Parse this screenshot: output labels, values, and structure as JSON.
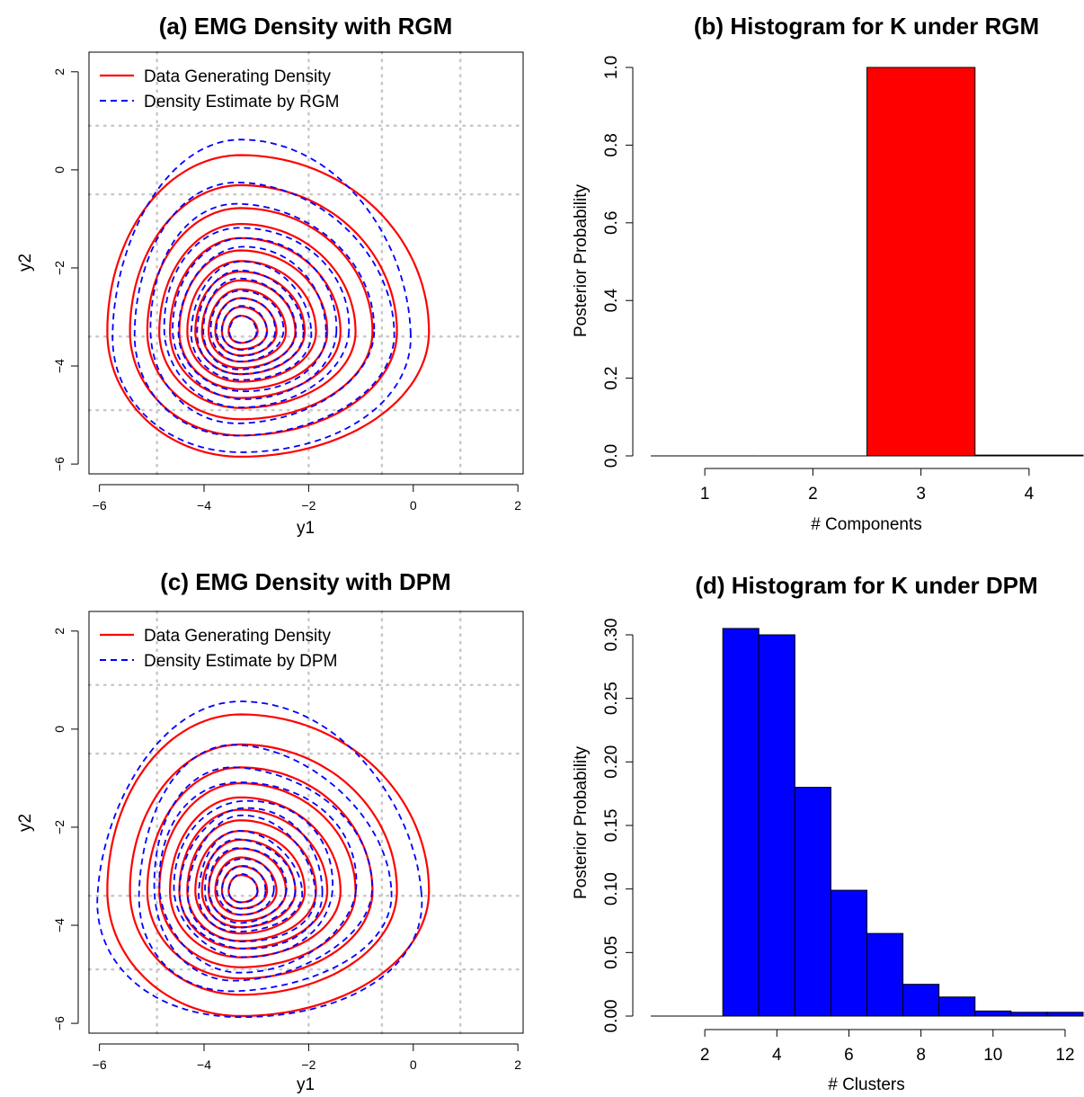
{
  "chart_data": [
    {
      "panel": "a",
      "type": "contour",
      "title": "(a) EMG Density with RGM",
      "xlabel": "y1",
      "ylabel": "y2",
      "xlim": [
        -6.2,
        2.1
      ],
      "ylim": [
        -6.2,
        2.4
      ],
      "xticks": [
        -6,
        -4,
        -2,
        0,
        2
      ],
      "yticks": [
        -6,
        -4,
        -2,
        0,
        2
      ],
      "grid_x": [
        -4.9,
        -2.0,
        -0.6,
        0.9
      ],
      "grid_y": [
        -4.9,
        -3.4,
        -0.5,
        0.9
      ],
      "legend_position": "top-left",
      "series": [
        {
          "name": "Data Generating Density",
          "color": "#ff0000",
          "style": "solid"
        },
        {
          "name": "Density Estimate by RGM",
          "color": "#0000ff",
          "style": "dashed"
        }
      ],
      "contour_center": [
        -3.3,
        -3.3
      ],
      "outer_contour_extent": {
        "left": -5.85,
        "right": 0.3,
        "top": 0.3,
        "bottom": -5.85
      },
      "estimate_outer_top": 0.72
    },
    {
      "panel": "b",
      "type": "bar",
      "title": "(b) Histogram for K under RGM",
      "xlabel": "# Components",
      "ylabel": "Posterior Probability",
      "xlim": [
        0.5,
        4.5
      ],
      "ylim": [
        0,
        1
      ],
      "xticks": [
        1,
        2,
        3,
        4
      ],
      "yticks": [
        "0.0",
        "0.2",
        "0.4",
        "0.6",
        "0.8",
        "1.0"
      ],
      "fill": "#ff0000",
      "categories": [
        1,
        2,
        3,
        4
      ],
      "values": [
        0,
        0,
        1.0,
        0.002
      ]
    },
    {
      "panel": "c",
      "type": "contour",
      "title": "(c) EMG Density with DPM",
      "xlabel": "y1",
      "ylabel": "y2",
      "xlim": [
        -6.2,
        2.1
      ],
      "ylim": [
        -6.2,
        2.4
      ],
      "xticks": [
        -6,
        -4,
        -2,
        0,
        2
      ],
      "yticks": [
        -6,
        -4,
        -2,
        0,
        2
      ],
      "grid_x": [
        -4.9,
        -2.0,
        -0.6,
        0.9
      ],
      "grid_y": [
        -4.9,
        -3.4,
        -0.5,
        0.9
      ],
      "legend_position": "top-left",
      "series": [
        {
          "name": "Data Generating Density",
          "color": "#ff0000",
          "style": "solid"
        },
        {
          "name": "Density Estimate by DPM",
          "color": "#0000ff",
          "style": "dashed"
        }
      ],
      "contour_center": [
        -3.3,
        -3.3
      ],
      "outer_contour_extent": {
        "left": -5.85,
        "right": 0.3,
        "top": 0.3,
        "bottom": -5.85
      },
      "estimate_outer_top": 0.38
    },
    {
      "panel": "d",
      "type": "bar",
      "title": "(d) Histogram for K under DPM",
      "xlabel": "# Clusters",
      "ylabel": "Posterior Probability",
      "xlim": [
        0.5,
        12.5
      ],
      "ylim": [
        0,
        0.3
      ],
      "xticks": [
        2,
        4,
        6,
        8,
        10,
        12
      ],
      "yticks": [
        "0.00",
        "0.05",
        "0.10",
        "0.15",
        "0.20",
        "0.25",
        "0.30"
      ],
      "fill": "#0000ff",
      "categories": [
        1,
        2,
        3,
        4,
        5,
        6,
        7,
        8,
        9,
        10,
        11,
        12
      ],
      "values": [
        0,
        0,
        0.305,
        0.3,
        0.18,
        0.099,
        0.065,
        0.025,
        0.015,
        0.004,
        0.003,
        0.003
      ]
    }
  ]
}
